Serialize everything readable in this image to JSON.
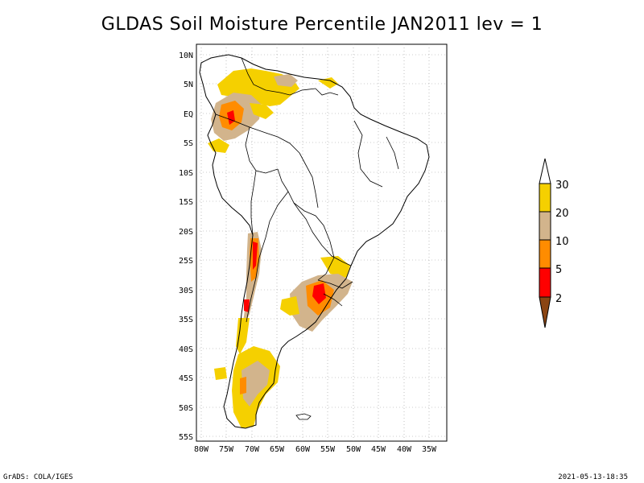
{
  "title": "GLDAS Soil Moisture Percentile JAN2011 lev = 1",
  "footer": {
    "left": "GrADS: COLA/IGES",
    "right": "2021-05-13-18:35"
  },
  "map": {
    "lon_ticks": [
      "80W",
      "75W",
      "70W",
      "65W",
      "60W",
      "55W",
      "50W",
      "45W",
      "40W",
      "35W"
    ],
    "lat_ticks": [
      "10N",
      "5N",
      "EQ",
      "5S",
      "10S",
      "15S",
      "20S",
      "25S",
      "30S",
      "35S",
      "40S",
      "45S",
      "50S",
      "55S"
    ],
    "extent": {
      "lon": [
        -81,
        -33
      ],
      "lat": [
        -56,
        11
      ]
    }
  },
  "colorbar": {
    "labels": [
      "30",
      "20",
      "10",
      "5",
      "2"
    ],
    "colors": {
      "above30": "#ffffff",
      "c20_30": "#f5d000",
      "c10_20": "#d2b48c",
      "c5_10": "#ff8c00",
      "c2_5": "#ff0000",
      "below2": "#8b4513"
    }
  },
  "anomaly_regions": [
    {
      "name": "northern-andes",
      "color": "#f5d000"
    },
    {
      "name": "amazon-west",
      "color": "#d2b48c"
    },
    {
      "name": "chile-central",
      "color": "#ff8c00"
    },
    {
      "name": "uruguay-south-brazil",
      "color": "#d2b48c"
    },
    {
      "name": "patagonia",
      "color": "#f5d000"
    }
  ]
}
